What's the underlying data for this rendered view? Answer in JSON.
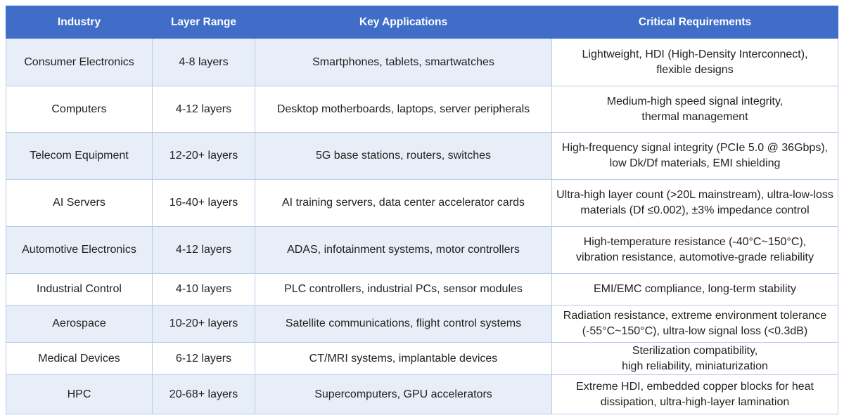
{
  "table": {
    "headers": [
      "Industry",
      "Layer Range",
      "Key Applications",
      "Critical Requirements"
    ],
    "rows": [
      {
        "industry": "Consumer Electronics",
        "layers": "4-8 layers",
        "applications": "Smartphones, tablets, smartwatches",
        "requirements": [
          "Lightweight, HDI (High-Density Interconnect),",
          "flexible designs"
        ]
      },
      {
        "industry": "Computers",
        "layers": "4-12 layers",
        "applications": "Desktop motherboards, laptops, server peripherals",
        "requirements": [
          "Medium-high speed signal integrity,",
          "thermal management"
        ]
      },
      {
        "industry": "Telecom Equipment",
        "layers": "12-20+ layers",
        "applications": "5G base stations, routers, switches",
        "requirements": [
          "High-frequency signal integrity (PCIe 5.0 @ 36Gbps),",
          "low Dk/Df materials, EMI shielding"
        ]
      },
      {
        "industry": "AI Servers",
        "layers": "16-40+ layers",
        "applications": "AI training servers, data center accelerator cards",
        "requirements": [
          "Ultra-high layer count (>20L mainstream), ultra-low-loss",
          "materials (Df ≤0.002), ±3% impedance control"
        ]
      },
      {
        "industry": "Automotive Electronics",
        "layers": "4-12 layers",
        "applications": "ADAS, infotainment systems, motor controllers",
        "requirements": [
          "High-temperature resistance (-40°C~150°C),",
          "vibration resistance, automotive-grade reliability"
        ]
      },
      {
        "industry": "Industrial Control",
        "layers": "4-10 layers",
        "applications": "PLC controllers, industrial PCs, sensor modules",
        "requirements": [
          "EMI/EMC compliance, long-term stability"
        ]
      },
      {
        "industry": "Aerospace",
        "layers": "10-20+ layers",
        "applications": "Satellite communications, flight control systems",
        "requirements": [
          "Radiation resistance, extreme environment tolerance",
          "(-55°C~150°C), ultra-low signal loss (<0.3dB)"
        ]
      },
      {
        "industry": "Medical Devices",
        "layers": "6-12 layers",
        "applications": "CT/MRI systems, implantable devices",
        "requirements": [
          "Sterilization compatibility,",
          "high reliability, miniaturization"
        ]
      },
      {
        "industry": "HPC",
        "layers": "20-68+ layers",
        "applications": "Supercomputers, GPU accelerators",
        "requirements": [
          "Extreme HDI, embedded copper blocks for heat",
          "dissipation, ultra-high-layer lamination"
        ]
      }
    ]
  }
}
